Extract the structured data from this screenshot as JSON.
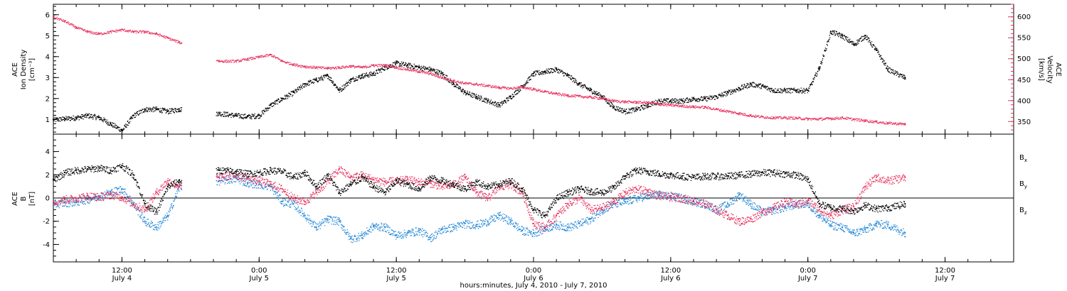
{
  "colors": {
    "black": "#000000",
    "pink": "#e8335f",
    "blue": "#1f86d6"
  },
  "x_axis": {
    "title": "hours:minutes, July  4, 2010 - July  7, 2010",
    "range_hours": [
      6,
      90
    ],
    "ticks": [
      {
        "hours": 12,
        "time": "12:00",
        "day": "July 4"
      },
      {
        "hours": 24,
        "time": "0:00",
        "day": "July 5"
      },
      {
        "hours": 36,
        "time": "12:00",
        "day": "July 5"
      },
      {
        "hours": 48,
        "time": "0:00",
        "day": "July 6"
      },
      {
        "hours": 60,
        "time": "12:00",
        "day": "July 6"
      },
      {
        "hours": 72,
        "time": "0:00",
        "day": "July 7"
      },
      {
        "hours": 84,
        "time": "12:00",
        "day": "July 7"
      }
    ]
  },
  "chart_data": [
    {
      "type": "scatter",
      "ylabel_lines": [
        "ACE",
        "Ion Density",
        "[cm⁻³]"
      ],
      "ylim": [
        0.3,
        6.5
      ],
      "yticks": [
        1,
        2,
        3,
        4,
        5,
        6
      ],
      "secondary_ylabel_lines": [
        "ACE",
        "Velocity",
        "[km/s]"
      ],
      "secondary_ylim": [
        320,
        630
      ],
      "secondary_yticks": [
        350,
        400,
        450,
        500,
        550,
        600
      ],
      "gap_hours": [
        17.2,
        20.2
      ],
      "series": [
        {
          "color": "#000000",
          "axis": "left",
          "x": [
            6,
            7,
            8,
            9,
            10,
            11,
            12,
            13,
            14,
            15,
            16,
            17,
            20.5,
            22,
            23,
            24,
            25,
            26,
            27,
            28,
            29,
            30,
            31,
            32,
            33,
            34,
            35,
            36,
            37,
            38,
            39,
            40,
            41,
            42,
            43,
            44,
            45,
            46,
            47,
            48,
            49,
            50,
            51,
            52,
            53,
            54,
            55,
            56,
            57,
            58,
            59,
            60,
            61,
            62,
            63,
            64,
            65,
            66,
            67,
            68,
            69,
            70,
            71,
            72,
            73,
            74,
            75,
            76,
            77,
            78,
            79,
            80.5
          ],
          "values": [
            1.0,
            1.05,
            1.1,
            1.2,
            1.1,
            0.8,
            0.5,
            1.2,
            1.5,
            1.5,
            1.4,
            1.5,
            1.3,
            1.2,
            1.15,
            1.2,
            1.7,
            2.0,
            2.3,
            2.7,
            2.9,
            3.1,
            2.4,
            2.9,
            3.1,
            3.2,
            3.5,
            3.7,
            3.6,
            3.5,
            3.4,
            3.2,
            2.7,
            2.3,
            2.1,
            1.9,
            1.7,
            2.1,
            2.6,
            3.2,
            3.3,
            3.4,
            3.1,
            2.7,
            2.4,
            2.1,
            1.6,
            1.4,
            1.5,
            1.7,
            1.9,
            1.9,
            1.9,
            2.0,
            2.0,
            2.1,
            2.3,
            2.5,
            2.7,
            2.6,
            2.4,
            2.4,
            2.4,
            2.4,
            3.5,
            5.2,
            5.0,
            4.6,
            5.0,
            4.3,
            3.4,
            3.0
          ]
        },
        {
          "color": "#e8335f",
          "axis": "right",
          "x": [
            6,
            7,
            8,
            9,
            10,
            11,
            12,
            13,
            14,
            15,
            16,
            17,
            20.5,
            22,
            23,
            24,
            25,
            26,
            27,
            28,
            29,
            30,
            31,
            32,
            33,
            34,
            35,
            36,
            37,
            38,
            39,
            40,
            41,
            42,
            43,
            44,
            45,
            46,
            47,
            48,
            49,
            50,
            51,
            52,
            53,
            54,
            55,
            56,
            57,
            58,
            59,
            60,
            61,
            62,
            63,
            64,
            65,
            66,
            67,
            68,
            69,
            70,
            71,
            72,
            73,
            74,
            75,
            76,
            77,
            78,
            79,
            80.5
          ],
          "values": [
            600,
            590,
            575,
            565,
            560,
            565,
            570,
            565,
            565,
            560,
            550,
            540,
            495,
            495,
            500,
            505,
            510,
            495,
            487,
            482,
            480,
            478,
            480,
            483,
            480,
            485,
            485,
            480,
            475,
            470,
            465,
            455,
            448,
            442,
            440,
            436,
            432,
            430,
            433,
            428,
            422,
            417,
            413,
            411,
            409,
            406,
            400,
            398,
            397,
            396,
            392,
            390,
            388,
            386,
            385,
            380,
            375,
            370,
            365,
            362,
            360,
            360,
            359,
            357,
            357,
            358,
            360,
            356,
            353,
            350,
            347,
            345
          ]
        }
      ]
    },
    {
      "type": "scatter",
      "ylabel_lines": [
        "ACE",
        "B",
        "[nT]"
      ],
      "ylim": [
        -5.5,
        5.5
      ],
      "yticks": [
        -4,
        -2,
        0,
        2,
        4
      ],
      "zero_line": true,
      "gap_hours": [
        17.2,
        20.2
      ],
      "series": [
        {
          "name": "Bx",
          "color": "#000000",
          "x": [
            6,
            7,
            8,
            9,
            10,
            11,
            12,
            13,
            14,
            15,
            16,
            17,
            20.5,
            22,
            23,
            24,
            25,
            26,
            27,
            28,
            29,
            30,
            31,
            32,
            33,
            34,
            35,
            36,
            37,
            38,
            39,
            40,
            41,
            42,
            43,
            44,
            45,
            46,
            47,
            48,
            49,
            50,
            51,
            52,
            53,
            54,
            55,
            56,
            57,
            58,
            59,
            60,
            61,
            62,
            63,
            64,
            65,
            66,
            67,
            68,
            69,
            70,
            71,
            72,
            73,
            74,
            75,
            76,
            77,
            78,
            79,
            80.5
          ],
          "values": [
            1.6,
            2.2,
            2.4,
            2.5,
            2.6,
            2.4,
            2.8,
            2.0,
            -0.5,
            -1.2,
            1.0,
            1.5,
            2.4,
            2.3,
            2.1,
            2.2,
            2.4,
            2.3,
            1.8,
            2.2,
            1.0,
            2.0,
            0.5,
            1.2,
            1.8,
            1.0,
            0.5,
            1.5,
            1.2,
            0.8,
            1.8,
            1.5,
            1.2,
            0.8,
            1.4,
            1.0,
            1.2,
            1.5,
            0.8,
            -1.0,
            -1.5,
            0.0,
            0.5,
            0.8,
            0.6,
            0.5,
            0.9,
            1.9,
            2.4,
            2.3,
            2.1,
            2.0,
            1.9,
            1.8,
            1.9,
            1.9,
            1.9,
            2.0,
            2.1,
            2.2,
            2.2,
            2.1,
            2.0,
            1.6,
            -0.5,
            -0.8,
            -0.9,
            -1.1,
            -0.6,
            -0.9,
            -0.8,
            -0.5
          ]
        },
        {
          "name": "By",
          "color": "#1f86d6",
          "x": [
            6,
            7,
            8,
            9,
            10,
            11,
            12,
            13,
            14,
            15,
            16,
            17,
            20.5,
            22,
            23,
            24,
            25,
            26,
            27,
            28,
            29,
            30,
            31,
            32,
            33,
            34,
            35,
            36,
            37,
            38,
            39,
            40,
            41,
            42,
            43,
            44,
            45,
            46,
            47,
            48,
            49,
            50,
            51,
            52,
            53,
            54,
            55,
            56,
            57,
            58,
            59,
            60,
            61,
            62,
            63,
            64,
            65,
            66,
            67,
            68,
            69,
            70,
            71,
            72,
            73,
            74,
            75,
            76,
            77,
            78,
            79,
            80.5
          ],
          "values": [
            -0.5,
            -0.4,
            -0.3,
            -0.1,
            0.2,
            0.5,
            0.8,
            -0.5,
            -2.0,
            -2.5,
            -1.5,
            1.0,
            1.5,
            1.7,
            1.3,
            1.2,
            1.0,
            -0.3,
            -0.5,
            -1.5,
            -2.5,
            -1.8,
            -2.0,
            -3.5,
            -3.2,
            -2.4,
            -2.5,
            -3.2,
            -3.0,
            -2.8,
            -3.4,
            -2.7,
            -2.5,
            -2.2,
            -2.3,
            -2.0,
            -1.5,
            -2.0,
            -2.8,
            -3.0,
            -2.6,
            -2.3,
            -2.5,
            -2.2,
            -1.8,
            -1.0,
            -0.5,
            -0.3,
            0.0,
            0.2,
            0.3,
            0.2,
            0.0,
            -0.3,
            -0.5,
            -1.0,
            -0.5,
            0.3,
            -0.5,
            -1.2,
            -1.0,
            -0.8,
            -0.5,
            -0.5,
            -1.5,
            -2.3,
            -2.5,
            -3.0,
            -2.7,
            -2.2,
            -2.3,
            -3.0
          ]
        },
        {
          "name": "Bz",
          "color": "#e8335f",
          "x": [
            6,
            7,
            8,
            9,
            10,
            11,
            12,
            13,
            14,
            15,
            16,
            17,
            20.5,
            22,
            23,
            24,
            25,
            26,
            27,
            28,
            29,
            30,
            31,
            32,
            33,
            34,
            35,
            36,
            37,
            38,
            39,
            40,
            41,
            42,
            43,
            44,
            45,
            46,
            47,
            48,
            49,
            50,
            51,
            52,
            53,
            54,
            55,
            56,
            57,
            58,
            59,
            60,
            61,
            62,
            63,
            64,
            65,
            66,
            67,
            68,
            69,
            70,
            71,
            72,
            73,
            74,
            75,
            76,
            77,
            78,
            79,
            80.5
          ],
          "values": [
            -0.3,
            -0.1,
            0.0,
            0.2,
            0.1,
            0.3,
            0.1,
            -0.5,
            -1.0,
            0.5,
            1.5,
            1.0,
            1.8,
            2.0,
            1.7,
            1.5,
            1.2,
            0.8,
            0.0,
            -0.3,
            0.5,
            1.5,
            2.5,
            1.8,
            2.0,
            1.6,
            1.4,
            1.5,
            1.6,
            1.4,
            1.3,
            1.0,
            1.2,
            1.8,
            0.5,
            0.0,
            1.0,
            1.2,
            0.5,
            -2.2,
            -2.5,
            -1.5,
            -0.5,
            0.0,
            -1.0,
            -0.8,
            -0.3,
            0.5,
            0.8,
            0.6,
            0.2,
            0.1,
            0.0,
            -0.2,
            -0.5,
            -1.0,
            -1.5,
            -2.0,
            -1.8,
            -1.2,
            -0.8,
            -0.3,
            -0.5,
            -0.2,
            -1.0,
            -1.5,
            -1.0,
            -0.7,
            1.0,
            1.8,
            1.5,
            1.8
          ]
        }
      ],
      "legend": {
        "position": "right",
        "items": [
          {
            "letter": "B",
            "sub": "x",
            "color": "#000000"
          },
          {
            "letter": "B",
            "sub": "y",
            "color": "#1f86d6"
          },
          {
            "letter": "B",
            "sub": "z",
            "color": "#e8335f"
          }
        ]
      }
    }
  ]
}
